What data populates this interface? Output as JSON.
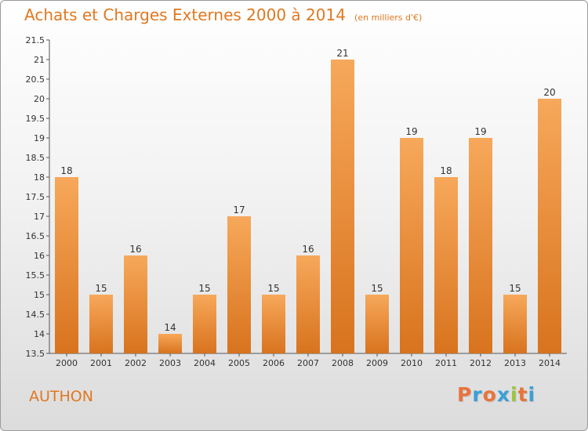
{
  "header": {
    "title": "Achats et Charges Externes 2000 à 2014",
    "unit": "(en milliers d'€)"
  },
  "footer": {
    "commune": "AUTHON",
    "logo_text": "Proxiti",
    "logo_colors": [
      "#e8743b",
      "#3aa0d8",
      "#e8743b",
      "#3aa0d8",
      "#9bc53d",
      "#e8743b",
      "#3aa0d8"
    ]
  },
  "colors": {
    "bar_top": "#f7a85a",
    "bar_bottom": "#d8731e",
    "title": "#e07820",
    "axis": "#555555"
  },
  "chart_data": {
    "type": "bar",
    "categories": [
      "2000",
      "2001",
      "2002",
      "2003",
      "2004",
      "2005",
      "2006",
      "2007",
      "2008",
      "2009",
      "2010",
      "2011",
      "2012",
      "2013",
      "2014"
    ],
    "values": [
      18,
      15,
      16,
      14,
      15,
      17,
      15,
      16,
      21,
      15,
      19,
      18,
      19,
      15,
      20
    ],
    "title": "Achats et Charges Externes 2000 à 2014",
    "xlabel": "",
    "ylabel": "",
    "ylim": [
      13.5,
      21.5
    ],
    "yticks": [
      13.5,
      14,
      14.5,
      15,
      15.5,
      16,
      16.5,
      17,
      17.5,
      18,
      18.5,
      19,
      19.5,
      20,
      20.5,
      21,
      21.5
    ],
    "grid": false,
    "legend": "none"
  }
}
